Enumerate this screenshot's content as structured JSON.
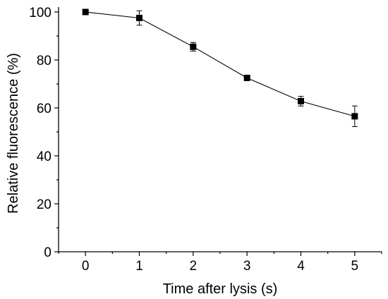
{
  "chart_data": {
    "type": "line",
    "title": "",
    "xlabel": "Time after lysis (s)",
    "ylabel": "Relative fluorescence (%)",
    "xlim": [
      -0.5,
      5.5
    ],
    "ylim": [
      0,
      100
    ],
    "x_ticks": [
      0,
      1,
      2,
      3,
      4,
      5
    ],
    "y_ticks": [
      0,
      20,
      40,
      60,
      80,
      100
    ],
    "grid": false,
    "legend": "none",
    "series": [
      {
        "x": [
          0,
          1,
          2,
          3,
          4,
          5
        ],
        "values": [
          100,
          97.5,
          85.5,
          72.5,
          62.8,
          56.5
        ],
        "error": [
          0.3,
          3.0,
          1.8,
          0.5,
          2.0,
          4.3
        ],
        "color": "#000000",
        "marker": "square"
      }
    ]
  }
}
